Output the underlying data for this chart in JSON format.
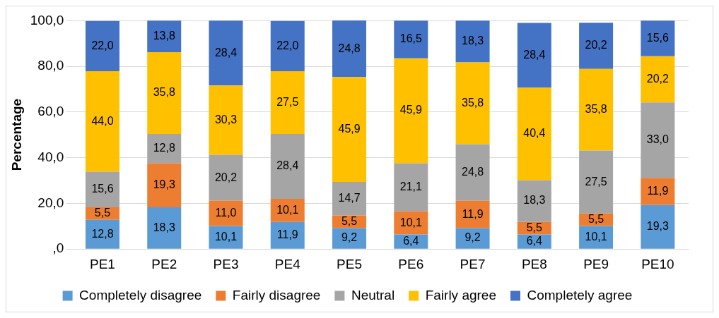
{
  "chart_data": {
    "type": "bar",
    "stacked": true,
    "ylabel": "Percentage",
    "categories": [
      "PE1",
      "PE2",
      "PE3",
      "PE4",
      "PE5",
      "PE6",
      "PE7",
      "PE8",
      "PE9",
      "PE10"
    ],
    "series": [
      {
        "name": "Completely disagree",
        "color": "#5b9bd5",
        "values": [
          12.8,
          18.3,
          10.1,
          11.9,
          9.2,
          6.4,
          9.2,
          6.4,
          10.1,
          19.3
        ],
        "value_labels": [
          "12,8",
          "18,3",
          "10,1",
          "11,9",
          "9,2",
          "6,4",
          "9,2",
          "6,4",
          "10,1",
          "19,3"
        ]
      },
      {
        "name": "Fairly disagree",
        "color": "#ed7d31",
        "values": [
          5.5,
          19.3,
          11.0,
          10.1,
          5.5,
          10.1,
          11.9,
          5.5,
          5.5,
          11.9
        ],
        "value_labels": [
          "5,5",
          "19,3",
          "11,0",
          "10,1",
          "5,5",
          "10,1",
          "11,9",
          "5,5",
          "5,5",
          "11,9"
        ]
      },
      {
        "name": "Neutral",
        "color": "#a5a5a5",
        "values": [
          15.6,
          12.8,
          20.2,
          28.4,
          14.7,
          21.1,
          24.8,
          18.3,
          27.5,
          33.0
        ],
        "value_labels": [
          "15,6",
          "12,8",
          "20,2",
          "28,4",
          "14,7",
          "21,1",
          "24,8",
          "18,3",
          "27,5",
          "33,0"
        ]
      },
      {
        "name": "Fairly agree",
        "color": "#ffc000",
        "values": [
          44.0,
          35.8,
          30.3,
          27.5,
          45.9,
          45.9,
          35.8,
          40.4,
          35.8,
          20.2
        ],
        "value_labels": [
          "44,0",
          "35,8",
          "30,3",
          "27,5",
          "45,9",
          "45,9",
          "35,8",
          "40,4",
          "35,8",
          "20,2"
        ]
      },
      {
        "name": "Completely agree",
        "color": "#4472c4",
        "values": [
          22.0,
          13.8,
          28.4,
          22.0,
          24.8,
          16.5,
          18.3,
          28.4,
          20.2,
          15.6
        ],
        "value_labels": [
          "22,0",
          "13,8",
          "28,4",
          "22,0",
          "24,8",
          "16,5",
          "18,3",
          "28,4",
          "20,2",
          "15,6"
        ]
      }
    ],
    "ylim": [
      0,
      100.1
    ],
    "yticks": [
      {
        "value": 0,
        "label": ",0"
      },
      {
        "value": 20,
        "label": "20,0"
      },
      {
        "value": 40,
        "label": "40,0"
      },
      {
        "value": 60,
        "label": "60,0"
      },
      {
        "value": 80,
        "label": "80,0"
      },
      {
        "value": 100,
        "label": "100,0"
      }
    ],
    "grid": "y",
    "legend": "bottom"
  }
}
